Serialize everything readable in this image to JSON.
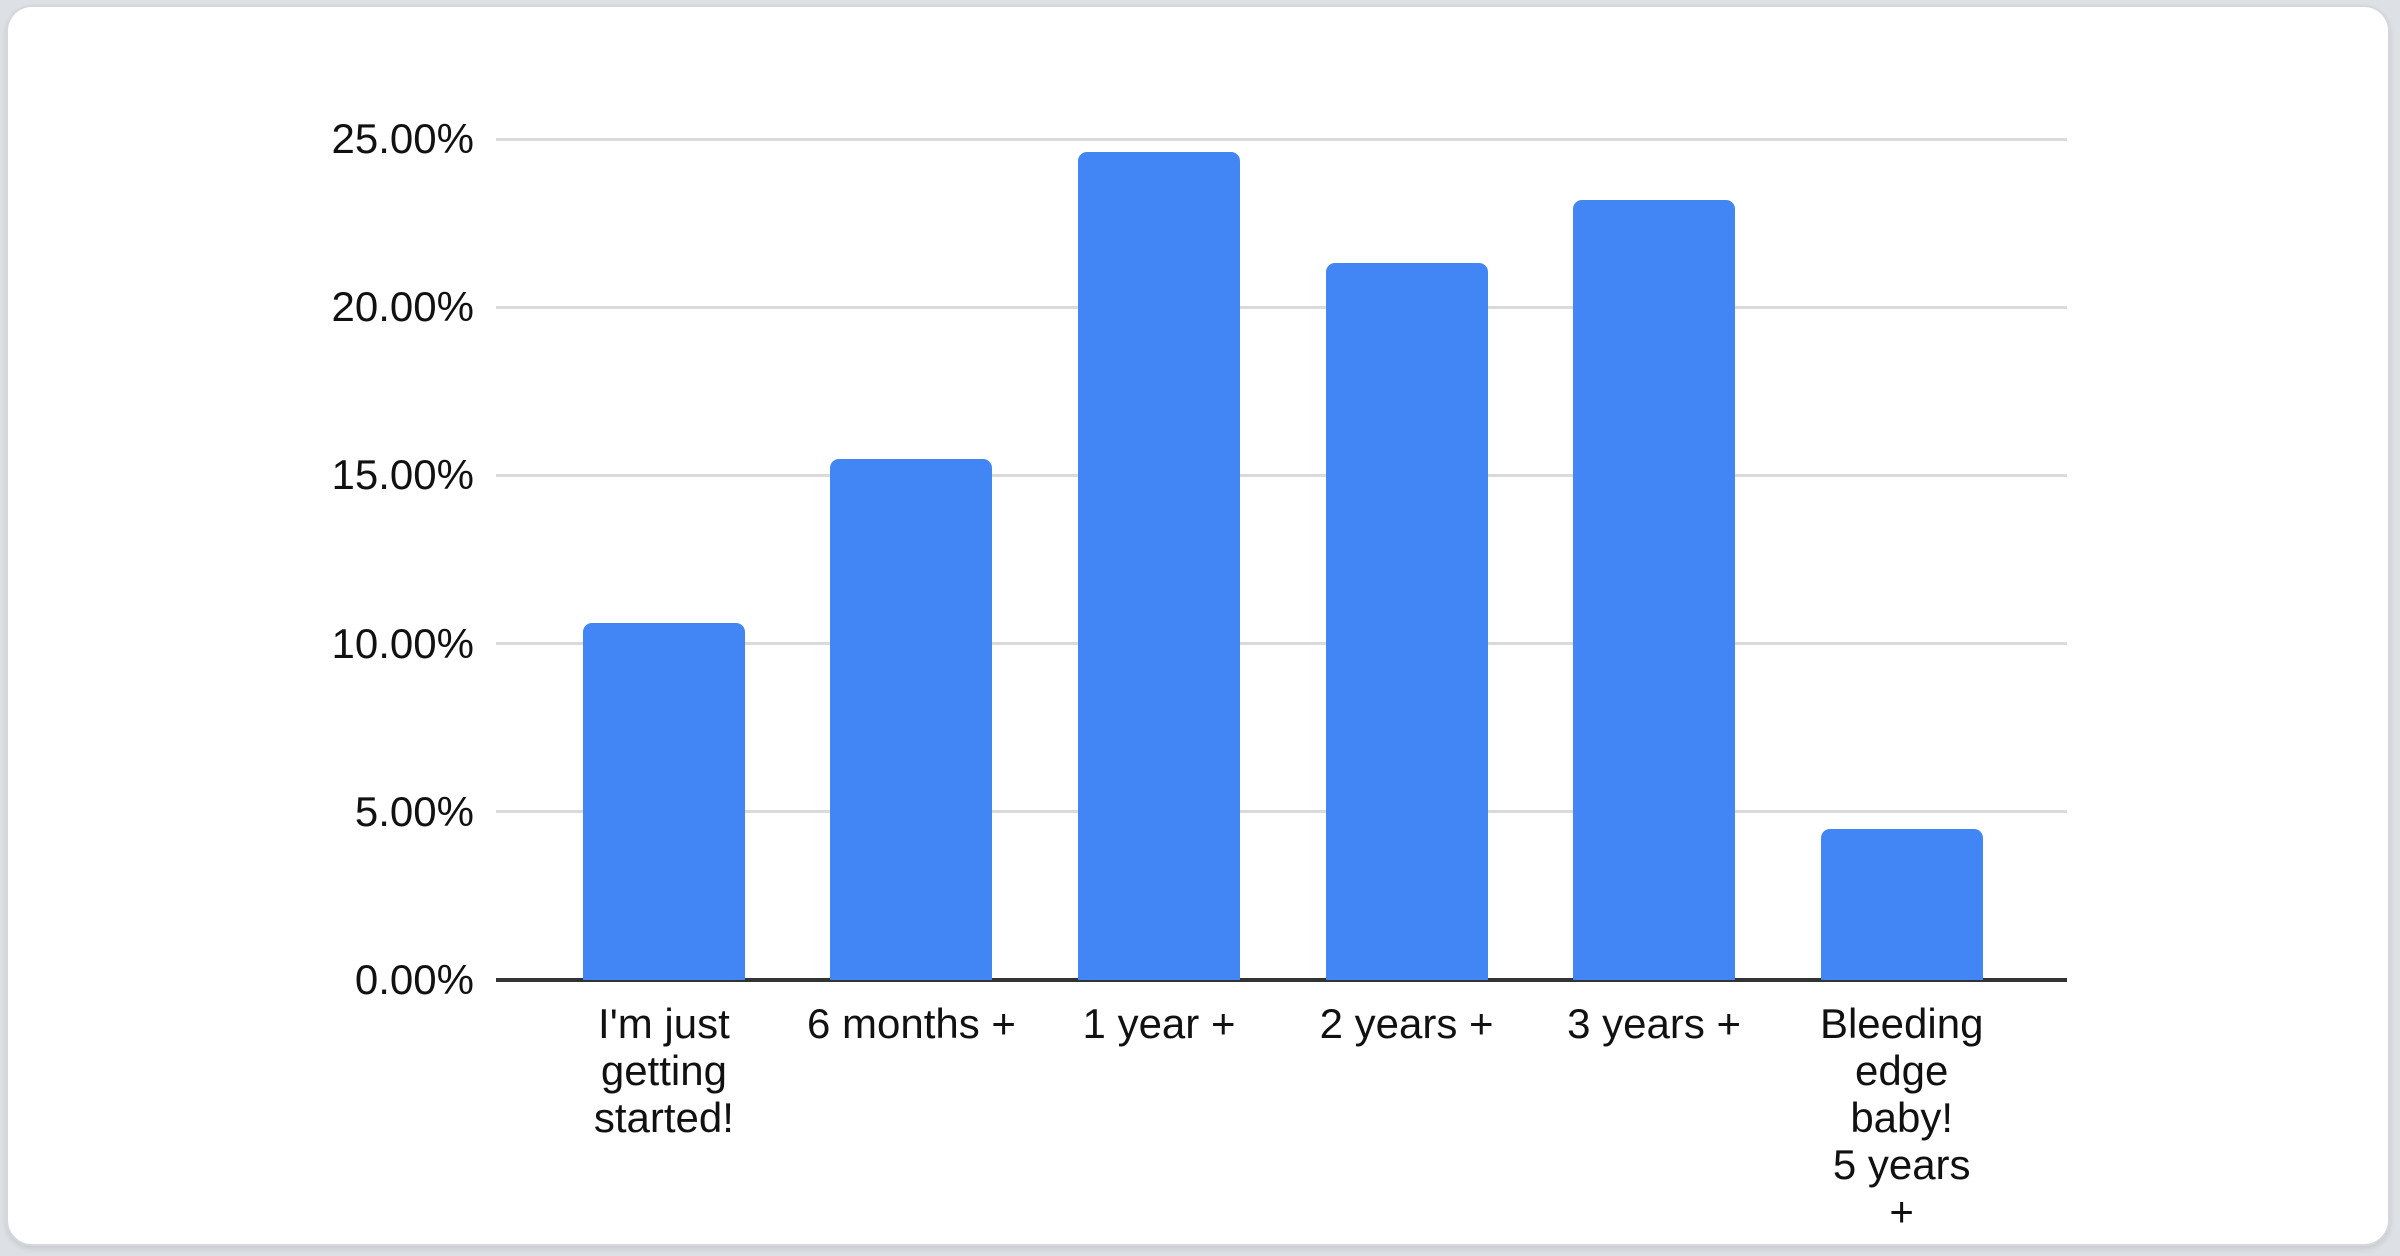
{
  "chart_data": {
    "type": "bar",
    "title": "",
    "categories": [
      "I'm just\ngetting\nstarted!",
      "6 months +",
      "1 year +",
      "2 years +",
      "3 years +",
      "Bleeding\nedge baby!\n5 years +"
    ],
    "values": [
      10.6,
      15.5,
      24.6,
      21.3,
      23.2,
      4.5
    ],
    "unit": "%",
    "ylim": [
      0,
      25
    ],
    "y_ticks": [
      {
        "value": 0,
        "label": "0.00%"
      },
      {
        "value": 5,
        "label": "5.00%"
      },
      {
        "value": 10,
        "label": "10.00%"
      },
      {
        "value": 15,
        "label": "15.00%"
      },
      {
        "value": 20,
        "label": "20.00%"
      },
      {
        "value": 25,
        "label": "25.00%"
      }
    ],
    "xlabel": "",
    "ylabel": "",
    "grid": true,
    "legend": "none",
    "colors": {
      "bar": "#4285F4",
      "gridline": "#dadada",
      "baseline": "#333333",
      "label": "#111111",
      "card_background": "#ffffff",
      "card_border": "#d4d8dc",
      "page_background": "#dde0e4"
    }
  }
}
